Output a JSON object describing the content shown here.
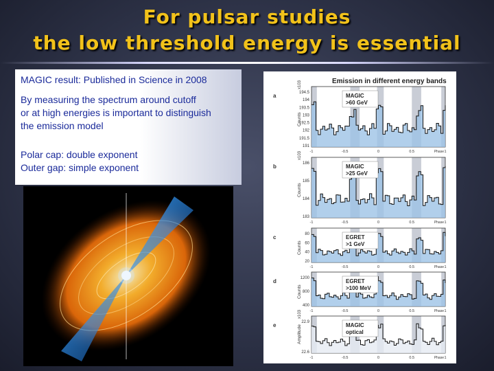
{
  "slide": {
    "title_line1": "For pulsar studies",
    "title_line2": "the low threshold energy is essential"
  },
  "text_box": {
    "result": "MAGIC result: Published in Science in 2008",
    "measure_lines": [
      "By measuring the spectrum around cutoff",
      "or at high energies is important to distinguish",
      "the emission model"
    ],
    "cap_lines": [
      "Polar cap: double exponent",
      "Outer gap: simple exponent"
    ]
  },
  "figure": {
    "title": "Emission in different energy bands",
    "x_axis_label": "Phase",
    "panels": [
      {
        "letter": "a",
        "label_line1": "MAGIC",
        "label_line2": ">60 GeV",
        "ylabel": "Counts",
        "exponent": "x10",
        "exp_power": "3",
        "yticks": [
          "194.5",
          "194",
          "193.5",
          "193",
          "192.5",
          "192",
          "191.5",
          "191"
        ]
      },
      {
        "letter": "b",
        "label_line1": "MAGIC",
        "label_line2": ">25 GeV",
        "ylabel": "Counts",
        "exponent": "x10",
        "exp_power": "3",
        "yticks": [
          "186",
          "185",
          "184",
          "183"
        ]
      },
      {
        "letter": "c",
        "label_line1": "EGRET",
        "label_line2": ">1 GeV",
        "ylabel": "Counts",
        "exponent": "",
        "exp_power": "",
        "yticks": [
          "80",
          "60",
          "40",
          "20"
        ]
      },
      {
        "letter": "d",
        "label_line1": "EGRET",
        "label_line2": ">100 MeV",
        "ylabel": "Counts",
        "exponent": "",
        "exp_power": "",
        "yticks": [
          "1200",
          "800",
          "400"
        ]
      },
      {
        "letter": "e",
        "label_line1": "MAGIC",
        "label_line2": "optical",
        "ylabel": "Amplitude",
        "exponent": "x10",
        "exp_power": "3",
        "yticks": [
          "22.9",
          "22.6"
        ]
      }
    ],
    "xticks": [
      "-1",
      "-0.5",
      "0",
      "0.5",
      "1"
    ]
  },
  "illustration": {
    "name": "pulsar emission illustration"
  }
}
